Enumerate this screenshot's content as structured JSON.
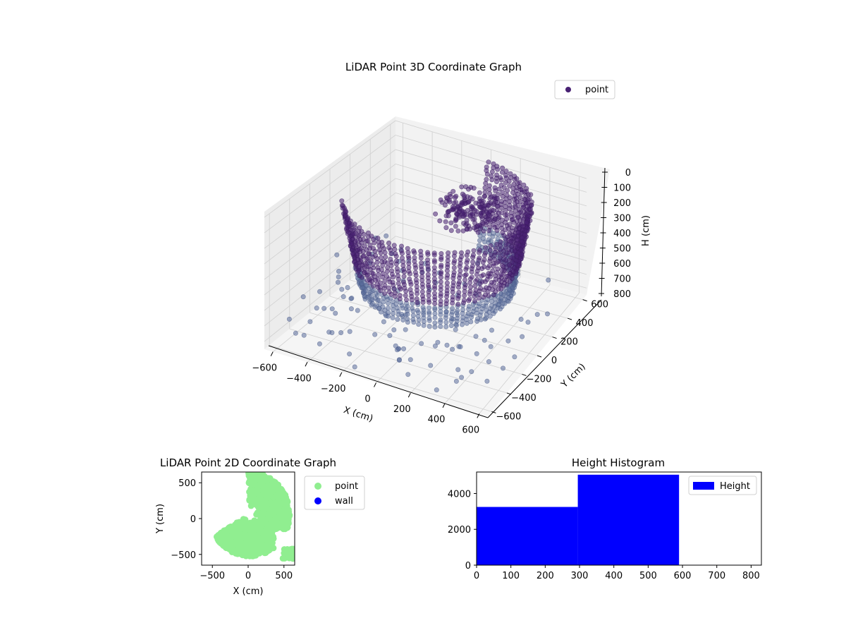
{
  "figure": {
    "colors": {
      "point_3d": "#482173",
      "point_3d_light": "#5a6b9a",
      "point_2d": "#90ee90",
      "wall": "#0000ff",
      "hist": "#0000ff",
      "pane_side": "#ececec",
      "pane_back": "#f2f2f2",
      "pane_floor": "#f5f5f5",
      "grid": "#d0d0d0"
    }
  },
  "chart_data": [
    {
      "id": "lidar-3d",
      "type": "scatter",
      "title": "LiDAR Point 3D Coordinate Graph",
      "xlabel": "X (cm)",
      "ylabel": "Y (cm)",
      "zlabel": "H (cm)",
      "xlim": [
        -650,
        650
      ],
      "ylim": [
        -650,
        650
      ],
      "zlim": [
        0,
        850
      ],
      "z_inverted": true,
      "xticks": [
        "−600",
        "−400",
        "−200",
        "0",
        "200",
        "400",
        "600"
      ],
      "yticks": [
        "−600",
        "−400",
        "−200",
        "0",
        "200",
        "400",
        "600"
      ],
      "zticks": [
        "0",
        "100",
        "200",
        "300",
        "400",
        "500",
        "600",
        "700",
        "800"
      ],
      "grid": true,
      "legend": {
        "placement": "top-right",
        "entries": [
          {
            "label": "point",
            "icon": "dot-icon",
            "color": "#482173"
          }
        ]
      },
      "series": [
        {
          "name": "point",
          "description": "dense ring of LiDAR returns at heights 0–600 cm plus scattered outliers below"
        }
      ]
    },
    {
      "id": "lidar-2d",
      "type": "scatter",
      "title": "LiDAR Point 2D Coordinate Graph",
      "xlabel": "X (cm)",
      "ylabel": "Y (cm)",
      "xlim": [
        -650,
        650
      ],
      "ylim": [
        -650,
        650
      ],
      "xticks": [
        "−500",
        "0",
        "500"
      ],
      "yticks": [
        "−500",
        "0",
        "500"
      ],
      "legend": {
        "placement": "outside-right",
        "entries": [
          {
            "label": "point",
            "color": "#90ee90"
          },
          {
            "label": "wall",
            "color": "#0000ff"
          }
        ]
      },
      "series": [
        {
          "name": "point"
        },
        {
          "name": "wall"
        }
      ]
    },
    {
      "id": "height-hist",
      "type": "bar",
      "title": "Height Histogram",
      "xlabel": "",
      "ylabel": "",
      "bins": [
        {
          "x0": 0,
          "x1": 295,
          "count": 3250
        },
        {
          "x0": 295,
          "x1": 590,
          "count": 5050
        },
        {
          "x0": 590,
          "x1": 830,
          "count": 20
        }
      ],
      "xlim": [
        0,
        830
      ],
      "ylim": [
        0,
        5200
      ],
      "xticks": [
        "0",
        "100",
        "200",
        "300",
        "400",
        "500",
        "600",
        "700",
        "800"
      ],
      "yticks": [
        "0",
        "2000",
        "4000"
      ],
      "legend": {
        "placement": "top-right",
        "entries": [
          {
            "label": "Height",
            "color": "#0000ff"
          }
        ]
      }
    }
  ]
}
